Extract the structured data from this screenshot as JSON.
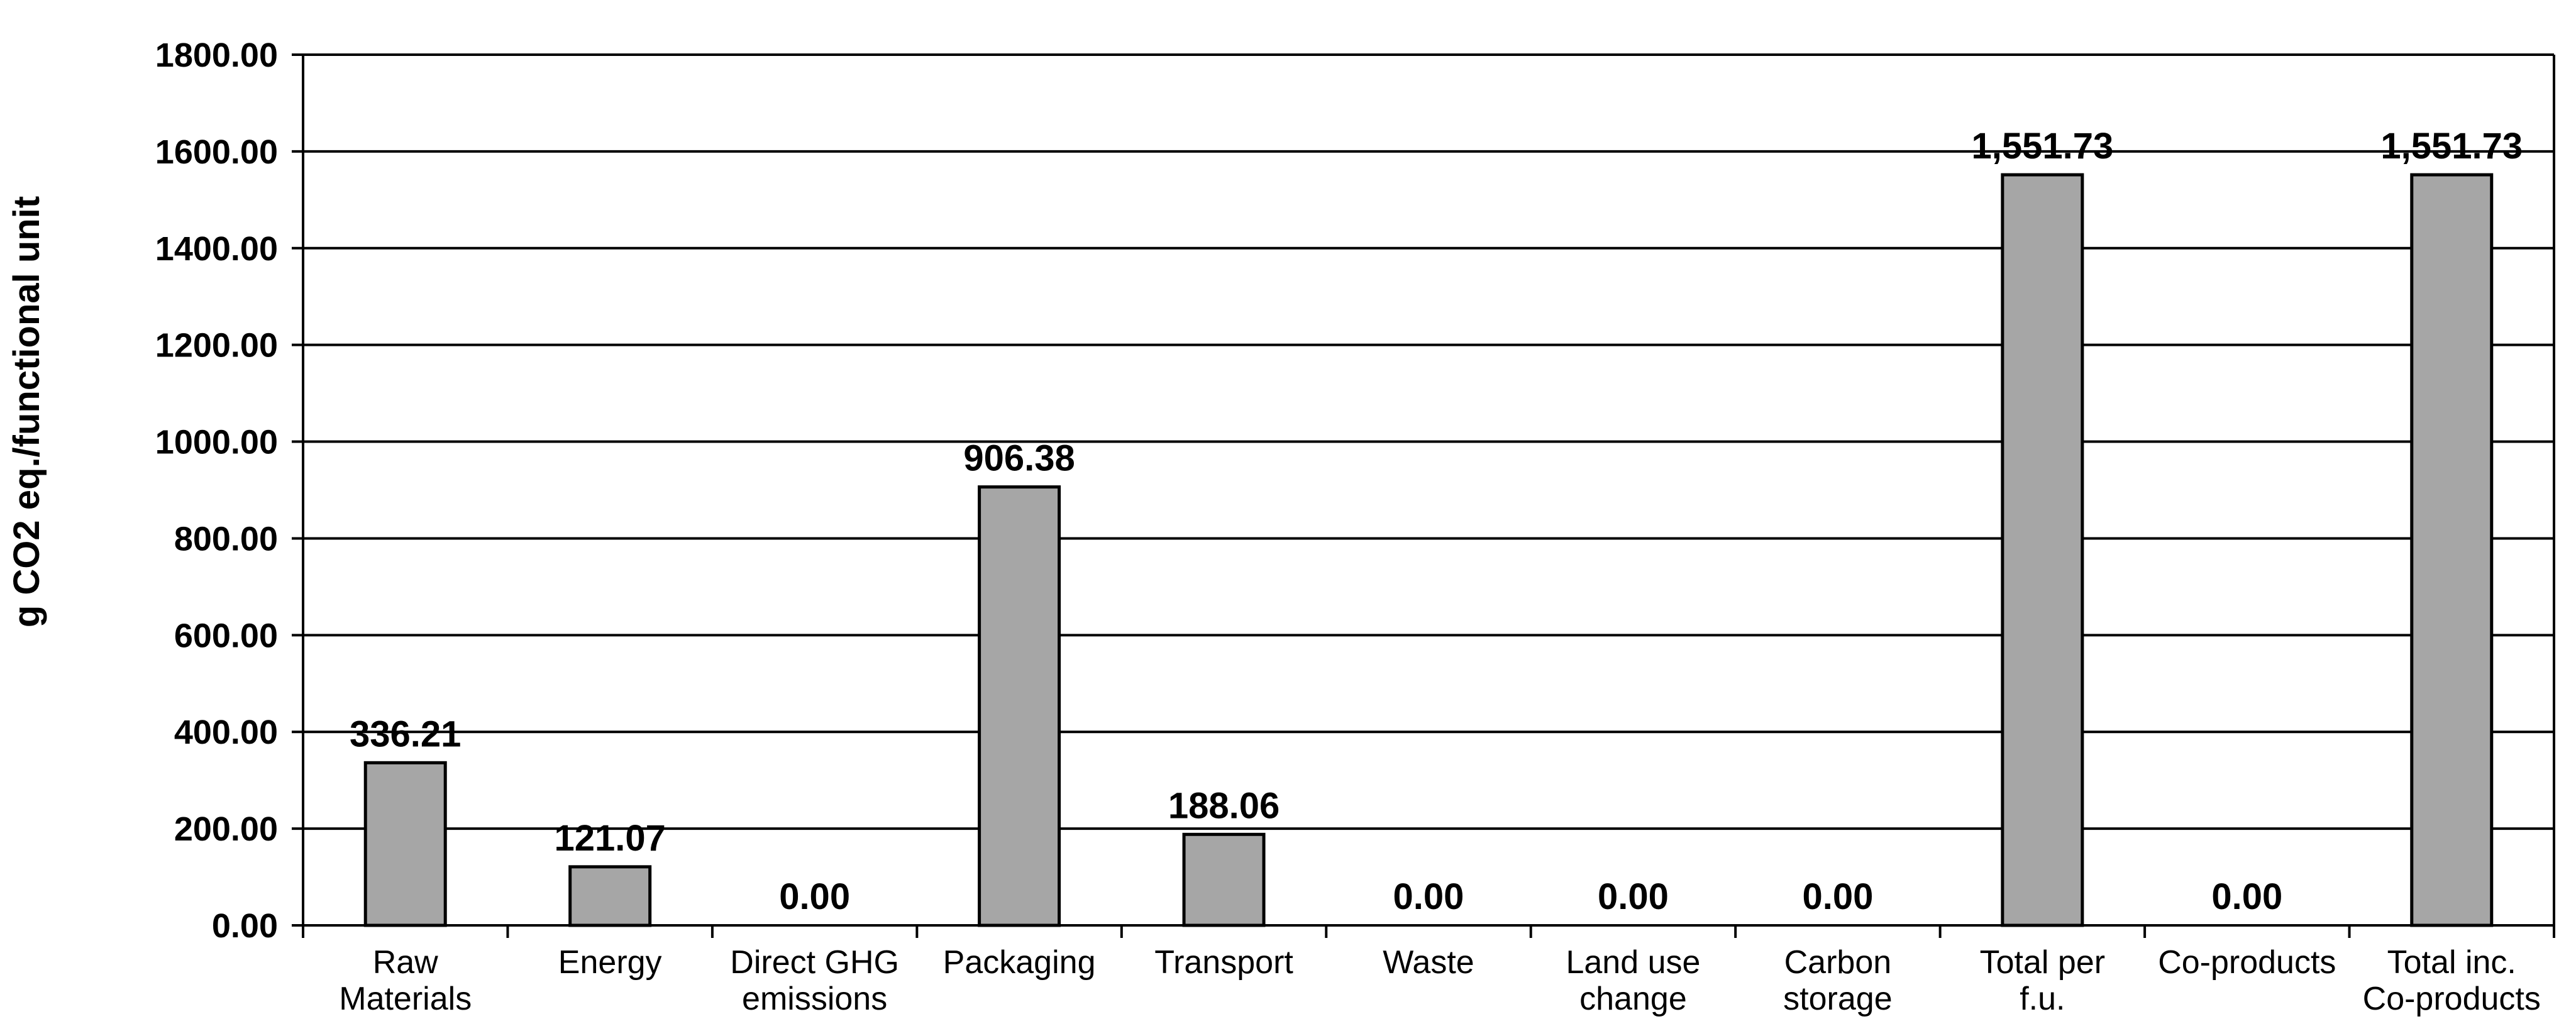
{
  "chart_data": {
    "type": "bar",
    "categories": [
      [
        "Raw",
        "Materials"
      ],
      [
        "Energy"
      ],
      [
        "Direct GHG",
        "emissions"
      ],
      [
        "Packaging"
      ],
      [
        "Transport"
      ],
      [
        "Waste"
      ],
      [
        "Land use",
        "change"
      ],
      [
        "Carbon",
        "storage"
      ],
      [
        "Total per",
        "f.u."
      ],
      [
        "Co-products"
      ],
      [
        "Total inc.",
        "Co-products"
      ]
    ],
    "values": [
      336.21,
      121.07,
      0.0,
      906.38,
      188.06,
      0.0,
      0.0,
      0.0,
      1551.73,
      0.0,
      1551.73
    ],
    "data_labels": [
      "336.21",
      "121.07",
      "0.00",
      "906.38",
      "188.06",
      "0.00",
      "0.00",
      "0.00",
      "1,551.73",
      "0.00",
      "1,551.73"
    ],
    "yticks": [
      "0.00",
      "200.00",
      "400.00",
      "600.00",
      "800.00",
      "1000.00",
      "1200.00",
      "1400.00",
      "1600.00",
      "1800.00"
    ],
    "ylabel": "g CO2 eq./functional unit",
    "ylim": [
      0,
      1800
    ],
    "grid": true,
    "bar_color": "#a6a6a6",
    "gridline_color": "#000000"
  }
}
